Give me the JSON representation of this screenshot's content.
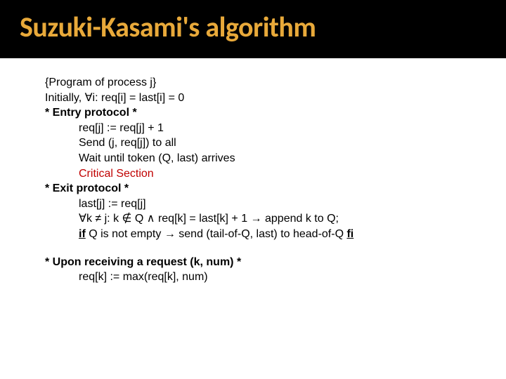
{
  "title": "Suzuki-Kasami's algorithm",
  "lines": [
    {
      "cls": "indent1",
      "html": "{Program of process j}"
    },
    {
      "cls": "indent1",
      "html": "Initially, ∀i: req[i] = last[i] = 0"
    },
    {
      "cls": "indent1 bold",
      "html": "* Entry protocol *"
    },
    {
      "cls": "indent2",
      "html": "req[j] := req[j] + 1"
    },
    {
      "cls": "indent2",
      "html": "Send (j, req[j]) to all"
    },
    {
      "cls": "indent2",
      "html": "Wait until token (Q, last) arrives"
    },
    {
      "cls": "indent2 red",
      "html": "Critical Section"
    },
    {
      "cls": "indent1 bold",
      "html": "* Exit protocol *"
    },
    {
      "cls": "indent2",
      "html": "last[j] := req[j]"
    },
    {
      "cls": "indent2",
      "html": "∀k ≠ j: k ∉ Q ∧ req[k] = last[k] + 1 → append k to Q;"
    },
    {
      "cls": "indent2",
      "html": "<span class='bold underline'>if</span> Q is not empty → send (tail-of-Q, last) to head-of-Q <span class='bold underline'>fi</span>"
    },
    {
      "cls": "gap",
      "html": ""
    },
    {
      "cls": "indent1 bold",
      "html": "* Upon receiving a request (k, num) *"
    },
    {
      "cls": "indent2",
      "html": "req[k] := max(req[k], num)"
    }
  ],
  "colors": {
    "title": "#e8a93a",
    "header_bg": "#000000",
    "page_bg": "#ffffff",
    "text": "#000000",
    "accent_red": "#c00000"
  },
  "typography": {
    "title_font": "Calibri",
    "title_size_pt": 40,
    "body_font": "Comic Sans MS",
    "body_size_pt": 16
  }
}
